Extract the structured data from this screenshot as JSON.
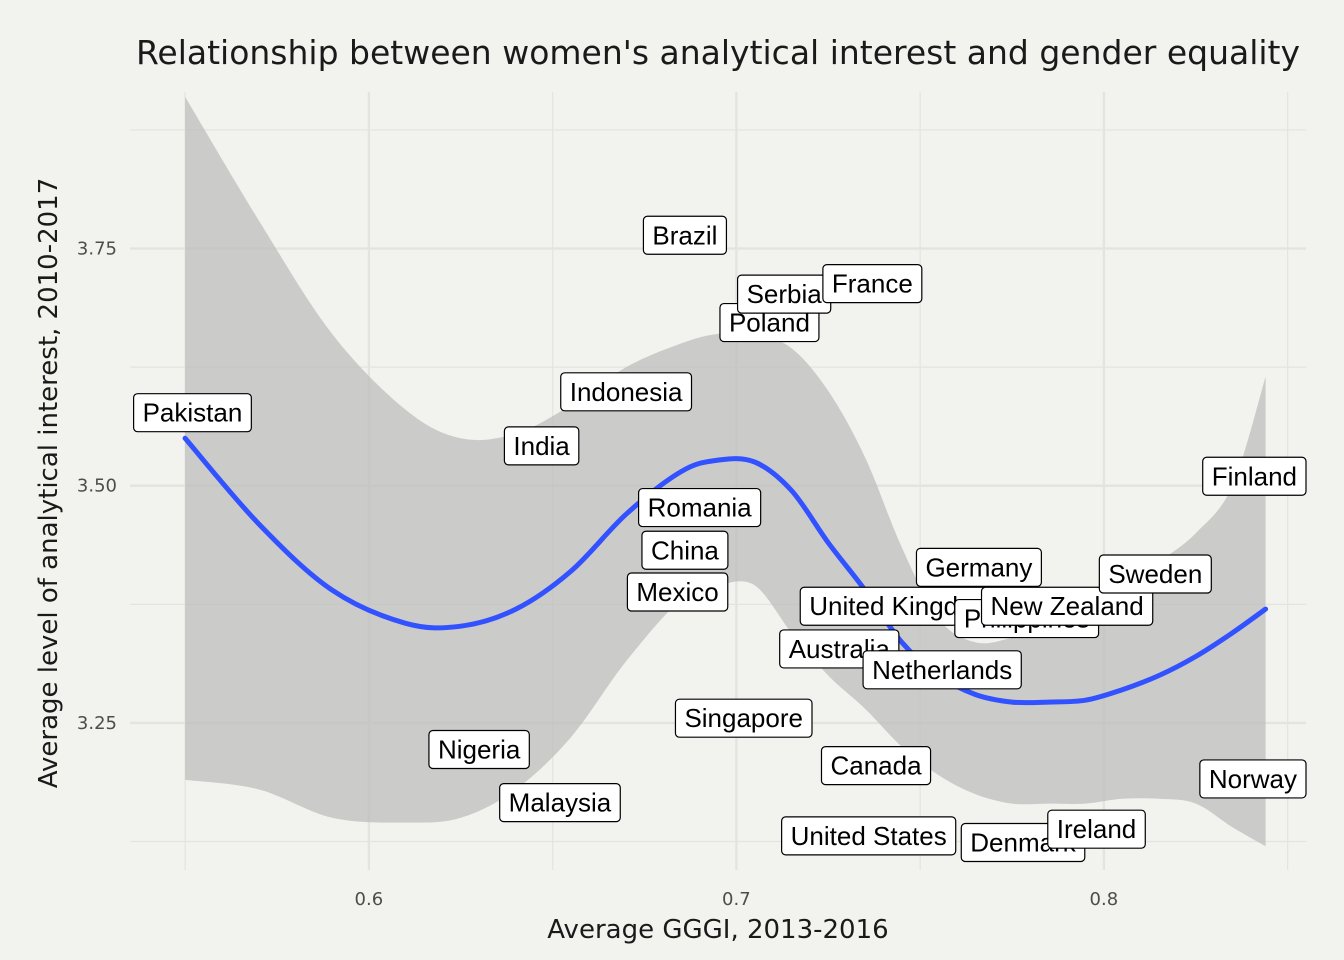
{
  "chart_data": {
    "type": "scatter",
    "title": "Relationship between women's analytical interest and gender equality",
    "xlabel": "Average GGGI, 2013-2016",
    "ylabel": "Average level of analytical interest, 2010-2017",
    "xlim": [
      0.535,
      0.855
    ],
    "ylim": [
      3.095,
      3.915
    ],
    "x_ticks": [
      0.6,
      0.7,
      0.8
    ],
    "y_ticks": [
      3.25,
      3.5,
      3.75
    ],
    "x_tick_labels": [
      "0.6",
      "0.7",
      "0.8"
    ],
    "y_tick_labels": [
      "3.25",
      "3.50",
      "3.75"
    ],
    "grid": true,
    "legend": "none",
    "colors": {
      "background": "#f2f2ee",
      "grid": "#e3e3e0",
      "smooth_line": "#3352ff",
      "confidence_band": "#bdbdbd",
      "label_fill": "#ffffff",
      "label_border": "#000000"
    },
    "points": [
      {
        "label": "Pakistan",
        "x": 0.552,
        "y": 3.577
      },
      {
        "label": "Nigeria",
        "x": 0.63,
        "y": 3.222
      },
      {
        "label": "India",
        "x": 0.647,
        "y": 3.542
      },
      {
        "label": "Malaysia",
        "x": 0.652,
        "y": 3.166
      },
      {
        "label": "Indonesia",
        "x": 0.67,
        "y": 3.599
      },
      {
        "label": "Brazil",
        "x": 0.686,
        "y": 3.764
      },
      {
        "label": "Romania",
        "x": 0.69,
        "y": 3.477
      },
      {
        "label": "China",
        "x": 0.686,
        "y": 3.432
      },
      {
        "label": "Mexico",
        "x": 0.684,
        "y": 3.388
      },
      {
        "label": "Singapore",
        "x": 0.702,
        "y": 3.255
      },
      {
        "label": "Poland",
        "x": 0.709,
        "y": 3.672
      },
      {
        "label": "Serbia",
        "x": 0.713,
        "y": 3.702
      },
      {
        "label": "France",
        "x": 0.737,
        "y": 3.713
      },
      {
        "label": "Australia",
        "x": 0.728,
        "y": 3.328
      },
      {
        "label": "United Kingdom",
        "x": 0.745,
        "y": 3.373
      },
      {
        "label": "Canada",
        "x": 0.738,
        "y": 3.205
      },
      {
        "label": "United States",
        "x": 0.736,
        "y": 3.131
      },
      {
        "label": "Netherlands",
        "x": 0.756,
        "y": 3.306
      },
      {
        "label": "Germany",
        "x": 0.766,
        "y": 3.414
      },
      {
        "label": "Philippines",
        "x": 0.779,
        "y": 3.36
      },
      {
        "label": "New Zealand",
        "x": 0.79,
        "y": 3.373
      },
      {
        "label": "Denmark",
        "x": 0.778,
        "y": 3.124
      },
      {
        "label": "Ireland",
        "x": 0.798,
        "y": 3.138
      },
      {
        "label": "Sweden",
        "x": 0.814,
        "y": 3.407
      },
      {
        "label": "Finland",
        "x": 0.844,
        "y": 3.51
      },
      {
        "label": "Norway",
        "x": 0.846,
        "y": 3.191
      }
    ],
    "smooth_line": {
      "x": [
        0.55,
        0.57,
        0.59,
        0.61,
        0.625,
        0.64,
        0.655,
        0.67,
        0.685,
        0.695,
        0.705,
        0.715,
        0.725,
        0.735,
        0.745,
        0.755,
        0.765,
        0.775,
        0.785,
        0.795,
        0.805,
        0.815,
        0.825,
        0.835,
        0.844
      ],
      "y": [
        3.55,
        3.46,
        3.39,
        3.355,
        3.352,
        3.37,
        3.41,
        3.47,
        3.515,
        3.527,
        3.525,
        3.495,
        3.44,
        3.39,
        3.335,
        3.3,
        3.28,
        3.272,
        3.272,
        3.274,
        3.285,
        3.3,
        3.32,
        3.345,
        3.37
      ]
    },
    "confidence_band": {
      "x": [
        0.55,
        0.57,
        0.59,
        0.61,
        0.625,
        0.64,
        0.655,
        0.67,
        0.685,
        0.695,
        0.705,
        0.715,
        0.725,
        0.735,
        0.745,
        0.755,
        0.765,
        0.775,
        0.785,
        0.795,
        0.805,
        0.815,
        0.825,
        0.835,
        0.844
      ],
      "upper": [
        3.91,
        3.78,
        3.66,
        3.58,
        3.55,
        3.555,
        3.585,
        3.625,
        3.65,
        3.66,
        3.66,
        3.645,
        3.6,
        3.53,
        3.435,
        3.36,
        3.335,
        3.34,
        3.355,
        3.375,
        3.395,
        3.42,
        3.45,
        3.5,
        3.615
      ],
      "lower": [
        3.19,
        3.18,
        3.15,
        3.145,
        3.15,
        3.18,
        3.235,
        3.315,
        3.38,
        3.395,
        3.395,
        3.345,
        3.3,
        3.265,
        3.225,
        3.195,
        3.175,
        3.165,
        3.165,
        3.165,
        3.17,
        3.17,
        3.165,
        3.14,
        3.12
      ]
    }
  }
}
